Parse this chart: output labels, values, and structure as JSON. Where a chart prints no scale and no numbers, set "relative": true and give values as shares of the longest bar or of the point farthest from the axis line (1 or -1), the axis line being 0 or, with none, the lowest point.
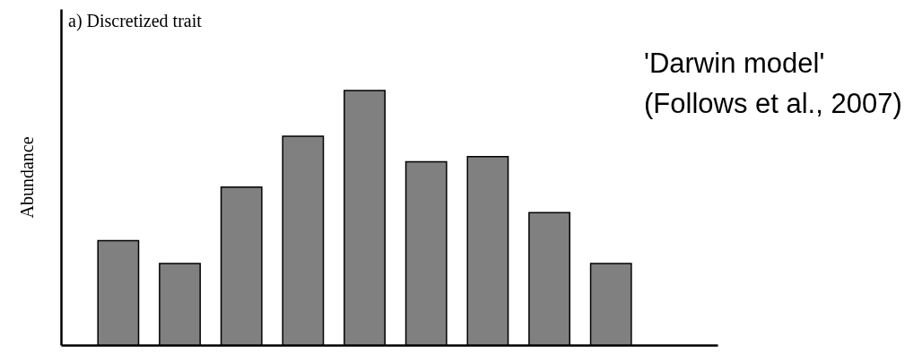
{
  "chart_data": {
    "type": "bar",
    "title": "a) Discretized trait",
    "ylabel": "Abundance",
    "relative": true,
    "color": "#808080",
    "categories": [
      null,
      null,
      null,
      null,
      null,
      null,
      null,
      null,
      null
    ],
    "values": [
      0.41,
      0.32,
      0.62,
      0.82,
      1,
      0.72,
      0.74,
      0.52,
      0.32
    ],
    "annotations": [
      "'Darwin model'\n(Follows et al., 2007)"
    ]
  }
}
